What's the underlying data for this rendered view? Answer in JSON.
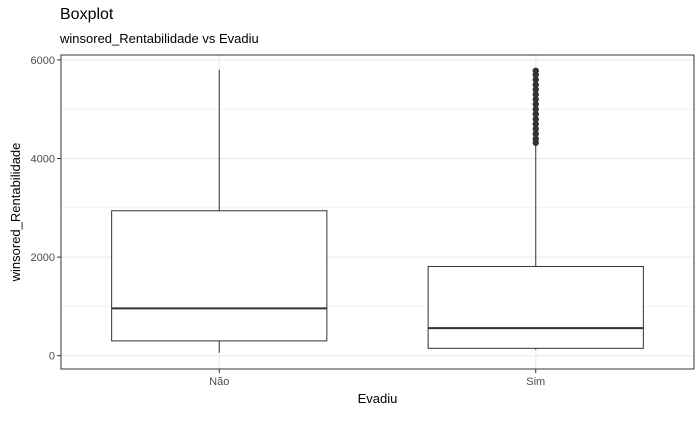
{
  "chart_data": {
    "type": "boxplot",
    "title": "Boxplot",
    "subtitle": "winsored_Rentabilidade vs Evadiu",
    "xlabel": "Evadiu",
    "ylabel": "winsored_Rentabilidade",
    "ylim": [
      -270,
      6100
    ],
    "yticks": [
      0,
      2000,
      4000,
      6000
    ],
    "ytick_labels": [
      "0",
      "2000",
      "4000",
      "6000"
    ],
    "categories": [
      "Não",
      "Sim"
    ],
    "grid": true,
    "boxes": [
      {
        "category": "Não",
        "min": 60,
        "q1": 300,
        "median": 960,
        "q3": 2940,
        "max": 5800,
        "outliers": []
      },
      {
        "category": "Sim",
        "min": 120,
        "q1": 150,
        "median": 560,
        "q3": 1810,
        "max": 4300,
        "outliers": [
          4320,
          4400,
          4500,
          4600,
          4700,
          4800,
          4900,
          5000,
          5100,
          5200,
          5300,
          5400,
          5500,
          5600,
          5700,
          5780
        ]
      }
    ],
    "colors": {
      "box_fill": "#ffffff",
      "box_stroke": "#333333",
      "grid": "#ebebeb",
      "panel_border": "#333333"
    }
  }
}
